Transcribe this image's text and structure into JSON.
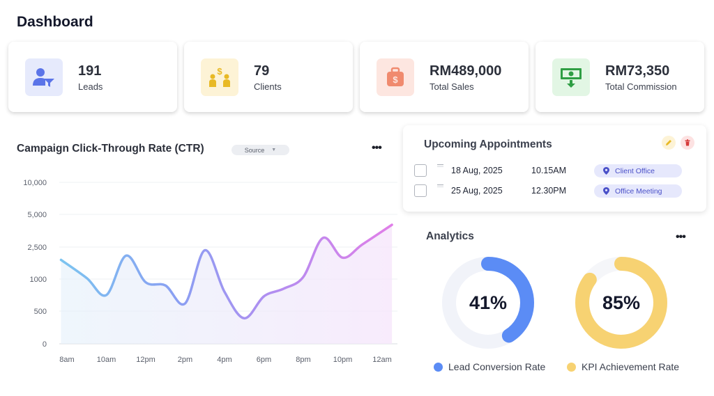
{
  "header": {
    "title": "Dashboard"
  },
  "stats": [
    {
      "value": "191",
      "label": "Leads",
      "icon": "user-filter-icon",
      "icon_bg": "#e6eafc",
      "icon_color": "#5b74e8"
    },
    {
      "value": "79",
      "label": "Clients",
      "icon": "people-money-icon",
      "icon_bg": "#fdf3d6",
      "icon_color": "#e8b925"
    },
    {
      "value": "RM489,000",
      "label": "Total Sales",
      "icon": "money-bag-icon",
      "icon_bg": "#fde6e0",
      "icon_color": "#f08a6e"
    },
    {
      "value": "RM73,350",
      "label": "Total Commission",
      "icon": "cash-download-icon",
      "icon_bg": "#e2f6e4",
      "icon_color": "#2f9e44"
    }
  ],
  "ctr": {
    "title": "Campaign Click-Through Rate (CTR)",
    "source_label": "Source",
    "more_icon": "more-dots-icon"
  },
  "chart_data": {
    "type": "line",
    "title": "Campaign Click-Through Rate (CTR)",
    "categories": [
      "8am",
      "10am",
      "12pm",
      "2pm",
      "4pm",
      "6pm",
      "8pm",
      "10pm",
      "12am"
    ],
    "y_tick_labels": [
      "0",
      "500",
      "1000",
      "2,500",
      "5,000",
      "10,000"
    ],
    "y_ticks": [
      0,
      500,
      1000,
      2500,
      5000,
      10000
    ],
    "x": [
      7.7,
      9,
      10,
      11,
      12,
      13,
      14,
      15,
      16,
      17,
      18,
      19,
      20,
      21,
      22,
      23,
      24.5
    ],
    "y": [
      1900,
      1050,
      750,
      2100,
      950,
      900,
      620,
      2350,
      800,
      390,
      730,
      850,
      1100,
      3200,
      2000,
      2700,
      4200
    ],
    "grid": true,
    "legend": "none",
    "colors": [
      "#7cc4f0",
      "#8a9ff2",
      "#b38df0",
      "#e07fe8"
    ]
  },
  "appointments": {
    "title": "Upcoming Appointments",
    "edit_icon": "pencil-icon",
    "delete_icon": "trash-icon",
    "edit_bg": "#fdf3d6",
    "edit_color": "#e8b925",
    "delete_bg": "#fde2e2",
    "delete_color": "#d63a3a",
    "items": [
      {
        "date": "18 Aug, 2025",
        "time": "10.15AM",
        "location": "Client Office"
      },
      {
        "date": "25 Aug, 2025",
        "time": "12.30PM",
        "location": "Office Meeting"
      }
    ]
  },
  "analytics": {
    "title": "Analytics",
    "more_icon": "more-dots-icon",
    "donuts": [
      {
        "value": 41,
        "label": "41%",
        "name": "Lead Conversion Rate",
        "color": "#5b8cf5",
        "track": "#f1f3f9"
      },
      {
        "value": 85,
        "label": "85%",
        "name": "KPI Achievement Rate",
        "color": "#f7d272",
        "track": "#f5f6f9"
      }
    ]
  }
}
